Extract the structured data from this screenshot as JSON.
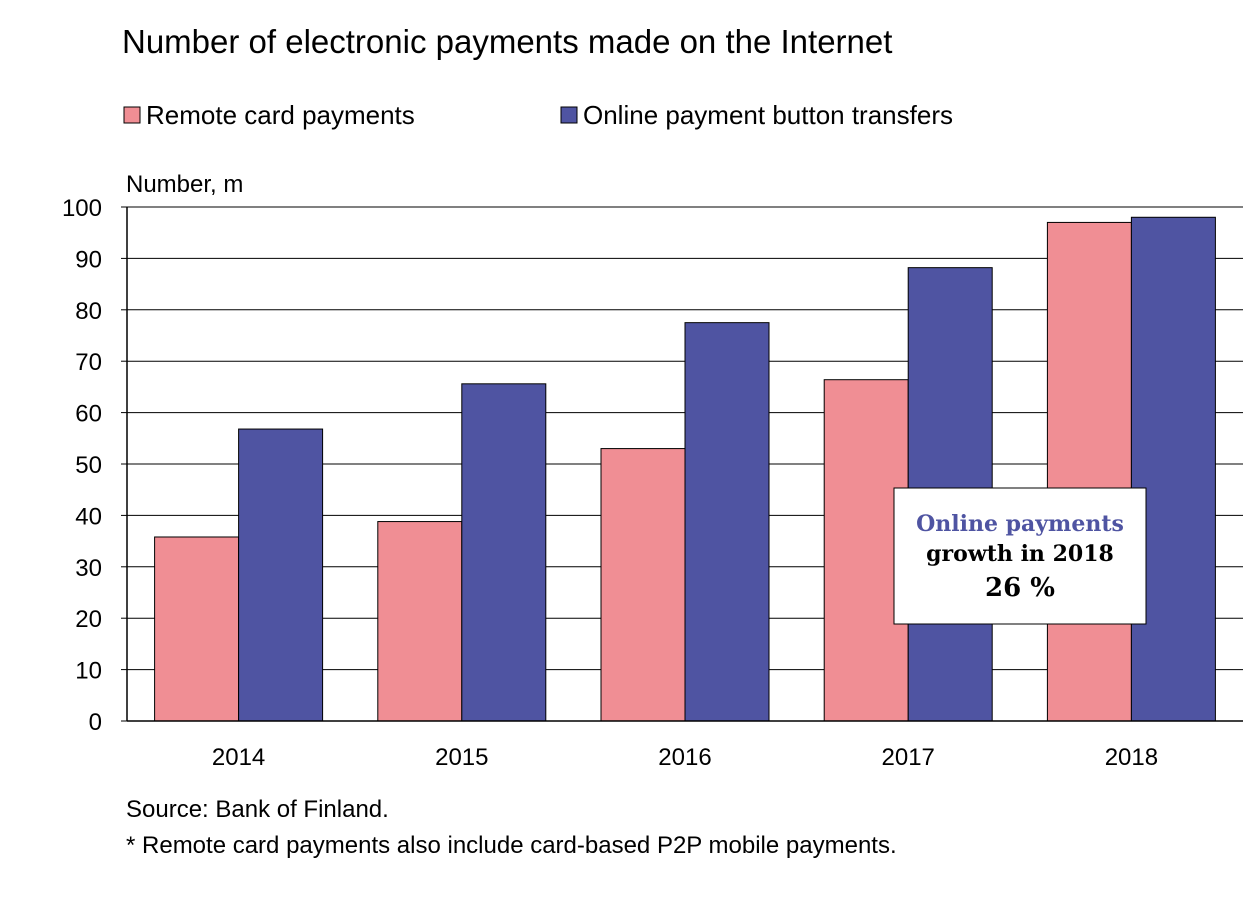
{
  "chart_data": {
    "type": "bar",
    "title": "Number of electronic payments made on the Internet",
    "ylabel": "Number, m",
    "xlabel": "",
    "ylim": [
      0,
      100
    ],
    "yticks": [
      0,
      10,
      20,
      30,
      40,
      50,
      60,
      70,
      80,
      90,
      100
    ],
    "grid": true,
    "legend_position": "top-left",
    "categories": [
      "2014",
      "2015",
      "2016",
      "2017",
      "2018"
    ],
    "series": [
      {
        "name": "Remote card payments",
        "color": "#f08e94",
        "values": [
          35.8,
          38.8,
          53.0,
          66.4,
          97.0
        ]
      },
      {
        "name": "Online payment button transfers",
        "color": "#4f54a2",
        "values": [
          56.8,
          65.6,
          77.5,
          88.2,
          98.0
        ]
      }
    ],
    "annotation": {
      "line1": "Online payments",
      "line2": "growth in 2018",
      "line3": "26 %",
      "color": "#4f54a2"
    },
    "source": "Source: Bank of Finland.",
    "footnote": "* Remote card payments also include card-based P2P mobile payments."
  }
}
